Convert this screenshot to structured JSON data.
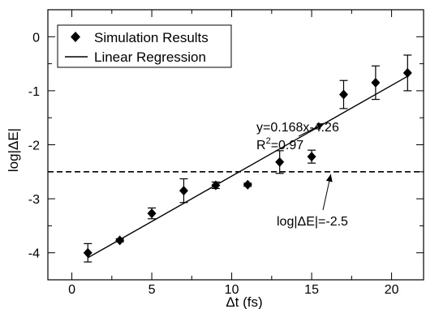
{
  "chart_data": {
    "type": "scatter",
    "xlabel": "Δt (fs)",
    "ylabel": "log|ΔE|",
    "xlim": [
      -1.5,
      22
    ],
    "ylim": [
      -4.5,
      0.5
    ],
    "xticks": [
      0,
      5,
      10,
      15,
      20
    ],
    "yticks": [
      0,
      -1,
      -2,
      -3,
      -4
    ],
    "xtick_labels": [
      "0",
      "5",
      "10",
      "15",
      "20"
    ],
    "ytick_labels": [
      "0",
      "-1",
      "-2",
      "-3",
      "-4"
    ],
    "grid": false,
    "legend": {
      "position": "top-left",
      "entries": [
        {
          "label": "Simulation Results",
          "marker": "diamond"
        },
        {
          "label": "Linear Regression",
          "marker": "line"
        }
      ]
    },
    "series": [
      {
        "name": "Simulation Results",
        "points": [
          {
            "x": 1,
            "y": -4.0,
            "err": 0.17
          },
          {
            "x": 3,
            "y": -3.77,
            "err": 0.03
          },
          {
            "x": 5,
            "y": -3.27,
            "err": 0.1
          },
          {
            "x": 7,
            "y": -2.85,
            "err": 0.22
          },
          {
            "x": 9,
            "y": -2.75,
            "err": 0.06
          },
          {
            "x": 11,
            "y": -2.74,
            "err": 0.03
          },
          {
            "x": 13,
            "y": -2.32,
            "err": 0.21
          },
          {
            "x": 15,
            "y": -2.22,
            "err": 0.12
          },
          {
            "x": 17,
            "y": -1.07,
            "err": 0.26
          },
          {
            "x": 19,
            "y": -0.85,
            "err": 0.31
          },
          {
            "x": 21,
            "y": -0.67,
            "err": 0.33
          }
        ]
      },
      {
        "name": "Linear Regression",
        "slope": 0.168,
        "intercept": -4.26,
        "x_range": [
          1,
          21
        ]
      }
    ],
    "reference_line": {
      "y": -2.5,
      "style": "dashed"
    },
    "annotations": [
      {
        "text": "y=0.168x-4.26",
        "arrow_to": {
          "x": 15.8,
          "y": -1.6
        }
      },
      {
        "text": "R",
        "sup": "2",
        "suffix": "=0.97"
      },
      {
        "text": "log|ΔE|=-2.5",
        "arrow_to": {
          "x": 16.2,
          "y": -2.5
        }
      }
    ]
  }
}
